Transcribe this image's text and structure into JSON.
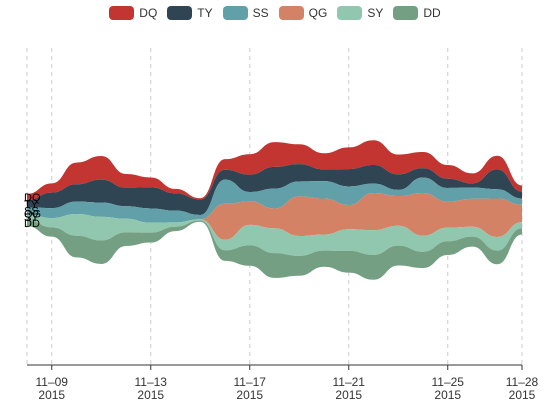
{
  "chart_data": {
    "type": "themeRiver",
    "title": "",
    "xlabel": "",
    "ylabel": "",
    "x": [
      "2015-11-08",
      "2015-11-09",
      "2015-11-10",
      "2015-11-11",
      "2015-11-12",
      "2015-11-13",
      "2015-11-14",
      "2015-11-15",
      "2015-11-16",
      "2015-11-17",
      "2015-11-18",
      "2015-11-19",
      "2015-11-20",
      "2015-11-21",
      "2015-11-22",
      "2015-11-23",
      "2015-11-24",
      "2015-11-25",
      "2015-11-26",
      "2015-11-27",
      "2015-11-28"
    ],
    "x_ticks": [
      {
        "date": "2015-11-09",
        "line1": "11–09",
        "line2": "2015"
      },
      {
        "date": "2015-11-13",
        "line1": "11–13",
        "line2": "2015"
      },
      {
        "date": "2015-11-17",
        "line1": "11–17",
        "line2": "2015"
      },
      {
        "date": "2015-11-21",
        "line1": "11–21",
        "line2": "2015"
      },
      {
        "date": "2015-11-25",
        "line1": "11–25",
        "line2": "2015"
      },
      {
        "date": "2015-11-28",
        "line1": "11–28",
        "line2": "2015"
      }
    ],
    "legend_position": "top-center",
    "grid": "vertical dashed",
    "series": [
      {
        "name": "DQ",
        "color": "#c23531",
        "values": [
          10,
          15,
          35,
          38,
          22,
          16,
          7,
          2,
          17,
          33,
          40,
          32,
          26,
          35,
          40,
          32,
          26,
          22,
          16,
          22,
          10
        ]
      },
      {
        "name": "TY",
        "color": "#2f4554",
        "values": [
          12,
          25,
          28,
          37,
          30,
          34,
          28,
          25,
          16,
          28,
          35,
          28,
          19,
          28,
          30,
          25,
          15,
          15,
          7,
          32,
          11
        ]
      },
      {
        "name": "SS",
        "color": "#61a0a8",
        "values": [
          10,
          16,
          20,
          23,
          20,
          23,
          19,
          7,
          39,
          15,
          32,
          24,
          28,
          30,
          15,
          10,
          25,
          22,
          18,
          15,
          10
        ]
      },
      {
        "name": "QG",
        "color": "#d48265",
        "values": [
          0,
          0,
          0,
          0,
          0,
          0,
          0,
          0,
          58,
          38,
          32,
          64,
          58,
          39,
          60,
          48,
          69,
          42,
          45,
          62,
          28
        ]
      },
      {
        "name": "SY",
        "color": "#91c7ae",
        "values": [
          10,
          15,
          35,
          38,
          22,
          16,
          7,
          2,
          17,
          33,
          40,
          32,
          26,
          35,
          40,
          32,
          26,
          22,
          16,
          22,
          10
        ]
      },
      {
        "name": "DD",
        "color": "#749f83",
        "values": [
          10,
          15,
          35,
          38,
          22,
          16,
          7,
          2,
          17,
          33,
          40,
          32,
          26,
          35,
          40,
          32,
          26,
          22,
          16,
          22,
          10
        ]
      }
    ]
  }
}
